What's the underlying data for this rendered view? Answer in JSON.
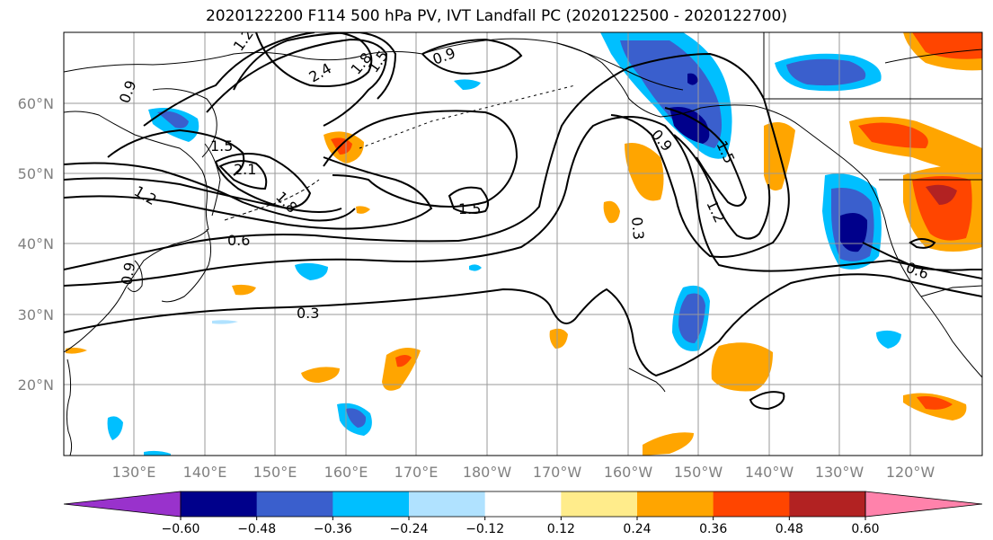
{
  "title": "2020122200 F114 500 hPa PV, IVT Landfall PC (2020122500 - 2020122700)",
  "map": {
    "latitude_labels": [
      "60°N",
      "50°N",
      "40°N",
      "30°N",
      "20°N"
    ],
    "longitude_labels": [
      "130°E",
      "140°E",
      "150°E",
      "160°E",
      "170°E",
      "180°W",
      "170°W",
      "160°W",
      "150°W",
      "140°W",
      "130°W",
      "120°W"
    ],
    "gridlines": true,
    "pv_contour_labels": [
      "1.2",
      "2.4",
      "1.8",
      "1.5",
      "0.9",
      "0.9",
      "1.5",
      "2.1",
      "1.2",
      "1.8",
      "0.6",
      "1.5",
      "0.9",
      "1.5",
      "1.2",
      "0.3",
      "0.6",
      "0.9",
      "0.3"
    ],
    "contour_color": "#000000",
    "coastline_color": "#000000"
  },
  "colorbar": {
    "tick_labels": [
      "−0.60",
      "−0.48",
      "−0.36",
      "−0.24",
      "−0.12",
      "0.12",
      "0.24",
      "0.36",
      "0.48",
      "0.60"
    ],
    "colors": [
      "#9932cc",
      "#00008b",
      "#3a5fcd",
      "#00bfff",
      "#b0e2ff",
      "#ffffff",
      "#ffec8b",
      "#ffa500",
      "#ff4500",
      "#b22222",
      "#ff82ab"
    ],
    "extend": "both"
  }
}
